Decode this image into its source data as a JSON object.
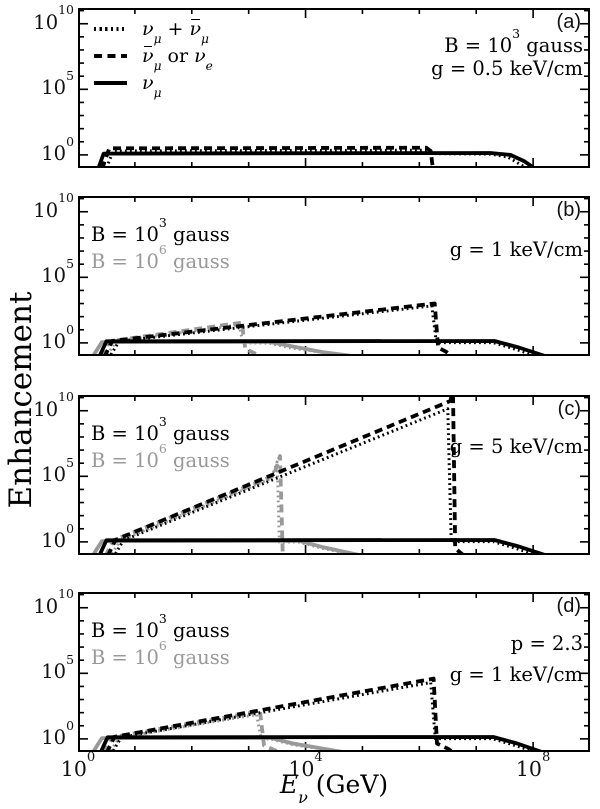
{
  "colors": {
    "black": "#000000",
    "gray": "#999999",
    "background": "#ffffff"
  },
  "labels": {
    "ylabel": [
      {
        "t": "Enhancement"
      }
    ],
    "xlabel": [
      {
        "t": "E",
        "i": true,
        "sub": "ν"
      },
      {
        "t": " (GeV)"
      }
    ]
  },
  "legend": {
    "items": [
      {
        "style": "dotted",
        "parts": [
          {
            "t": "ν",
            "i": true,
            "sub": "μ"
          },
          {
            "t": " + "
          },
          {
            "t": "ν",
            "i": true,
            "bar": true,
            "sub": "μ"
          }
        ]
      },
      {
        "style": "dashed",
        "parts": [
          {
            "t": "ν",
            "i": true,
            "bar": true,
            "sub": "μ"
          },
          {
            "t": " or "
          },
          {
            "t": "ν",
            "i": true,
            "sub": "e"
          }
        ]
      },
      {
        "style": "solid",
        "parts": [
          {
            "t": "ν",
            "i": true,
            "sub": "μ"
          }
        ]
      }
    ]
  },
  "axes": {
    "x_scale": "log",
    "y_scale": "log",
    "x_log_range": [
      0,
      9
    ],
    "y_log_range": [
      -1,
      11.2
    ],
    "x_major_decades": [
      0,
      4,
      8
    ],
    "y_major_decades": [
      0,
      5,
      10
    ],
    "x_tick_labels": [
      {
        "v": 0,
        "parts": [
          {
            "t": "10"
          },
          {
            "sup": "0"
          }
        ]
      },
      {
        "v": 4,
        "parts": [
          {
            "t": "10"
          },
          {
            "sup": "4"
          }
        ]
      },
      {
        "v": 8,
        "parts": [
          {
            "t": "10"
          },
          {
            "sup": "8"
          }
        ]
      }
    ],
    "y_tick_labels": [
      {
        "v": 10,
        "parts": [
          {
            "t": "10"
          },
          {
            "sup": "10"
          }
        ]
      },
      {
        "v": 5,
        "parts": [
          {
            "t": "10"
          },
          {
            "sup": "5"
          }
        ]
      },
      {
        "v": 0,
        "parts": [
          {
            "t": "10"
          },
          {
            "sup": "0"
          }
        ]
      }
    ]
  },
  "chart_data": [
    {
      "type": "line",
      "panel": "a",
      "corner_label": "(a)",
      "annotations_left": [],
      "annotations_right": [
        {
          "parts": [
            {
              "t": "B = 10"
            },
            {
              "sup": "3"
            },
            {
              "t": " gauss"
            }
          ]
        },
        {
          "parts": [
            {
              "t": "g = 0.5 keV/cm"
            }
          ]
        }
      ],
      "series": [
        {
          "id": "dotted-B1e3",
          "name": "nu_mu + nubar_mu (B = 10^3 gauss)",
          "style": "dotted",
          "color": "black",
          "points_log10": [
            [
              0.5,
              -1.0
            ],
            [
              0.62,
              0.3
            ],
            [
              3.0,
              0.33
            ],
            [
              6.18,
              0.36
            ],
            [
              6.28,
              0.1
            ],
            [
              7.25,
              0.06
            ],
            [
              7.55,
              -0.15
            ],
            [
              7.92,
              -1.1
            ]
          ]
        },
        {
          "id": "dashed-B1e3",
          "name": "nubar_mu or nu_e (B = 10^3 gauss)",
          "style": "dashed",
          "color": "black",
          "points_log10": [
            [
              0.42,
              -1.1
            ],
            [
              0.55,
              0.5
            ],
            [
              3.0,
              0.52
            ],
            [
              6.12,
              0.55
            ],
            [
              6.2,
              0.3
            ],
            [
              6.24,
              -1.1
            ]
          ]
        },
        {
          "id": "solid-B1e3",
          "name": "nu_mu (B = 10^3 gauss)",
          "style": "solid",
          "color": "black",
          "points_log10": [
            [
              0.36,
              -1.0
            ],
            [
              0.45,
              0.1
            ],
            [
              3.0,
              0.12
            ],
            [
              7.25,
              0.14
            ],
            [
              7.6,
              0.0
            ],
            [
              7.85,
              -0.5
            ],
            [
              8.05,
              -1.1
            ]
          ]
        }
      ]
    },
    {
      "type": "line",
      "panel": "b",
      "corner_label": "(b)",
      "annotations_left": [
        {
          "color": "#000000",
          "parts": [
            {
              "t": "B = 10"
            },
            {
              "sup": "3"
            },
            {
              "t": " gauss"
            }
          ]
        },
        {
          "color": "#999999",
          "parts": [
            {
              "t": "B = 10"
            },
            {
              "sup": "6"
            },
            {
              "t": " gauss"
            }
          ]
        }
      ],
      "annotations_right": [
        {
          "parts": [
            {
              "t": "g = 1 keV/cm"
            }
          ]
        }
      ],
      "series": [
        {
          "id": "dotted-B1e6",
          "name": "nu_mu + nubar_mu (B = 10^6 gauss)",
          "style": "dotted",
          "color": "gray",
          "points_log10": [
            [
              0.52,
              -0.9
            ],
            [
              0.66,
              0.1
            ],
            [
              2.83,
              1.38
            ],
            [
              2.9,
              0.0
            ],
            [
              3.35,
              -0.02
            ],
            [
              3.75,
              -0.4
            ],
            [
              4.92,
              -1.1
            ]
          ]
        },
        {
          "id": "dashed-B1e6",
          "name": "nubar_mu or nu_e (B = 10^6 gauss)",
          "style": "dashed",
          "color": "gray",
          "points_log10": [
            [
              0.4,
              -1.1
            ],
            [
              0.55,
              0.12
            ],
            [
              2.88,
              1.55
            ],
            [
              2.94,
              -0.45
            ],
            [
              3.25,
              -1.1
            ]
          ]
        },
        {
          "id": "solid-B1e6",
          "name": "nu_mu (B = 10^6 gauss)",
          "style": "solid",
          "color": "gray",
          "points_log10": [
            [
              0.28,
              -0.9
            ],
            [
              0.42,
              0.06
            ],
            [
              3.35,
              0.08
            ],
            [
              3.8,
              -0.3
            ],
            [
              4.3,
              -0.7
            ],
            [
              5.0,
              -1.1
            ]
          ]
        },
        {
          "id": "dotted-B1e3",
          "name": "nu_mu + nubar_mu (B = 10^3 gauss)",
          "style": "dotted",
          "color": "black",
          "points_log10": [
            [
              0.58,
              -0.9
            ],
            [
              0.72,
              0.12
            ],
            [
              6.22,
              2.82
            ],
            [
              6.3,
              0.02
            ],
            [
              7.3,
              0.02
            ],
            [
              7.7,
              -0.5
            ],
            [
              8.12,
              -1.1
            ]
          ]
        },
        {
          "id": "dashed-B1e3",
          "name": "nubar_mu or nu_e (B = 10^3 gauss)",
          "style": "dashed",
          "color": "black",
          "points_log10": [
            [
              0.46,
              -1.1
            ],
            [
              0.6,
              0.15
            ],
            [
              6.27,
              3.0
            ],
            [
              6.33,
              -0.35
            ],
            [
              6.48,
              -0.7
            ],
            [
              6.6,
              -1.1
            ]
          ]
        },
        {
          "id": "solid-B1e3",
          "name": "nu_mu (B = 10^3 gauss)",
          "style": "solid",
          "color": "black",
          "points_log10": [
            [
              0.38,
              -1.0
            ],
            [
              0.5,
              0.12
            ],
            [
              7.32,
              0.14
            ],
            [
              7.75,
              -0.35
            ],
            [
              8.28,
              -1.1
            ]
          ]
        }
      ]
    },
    {
      "type": "line",
      "panel": "c",
      "corner_label": "(c)",
      "annotations_left": [
        {
          "color": "#000000",
          "parts": [
            {
              "t": "B = 10"
            },
            {
              "sup": "3"
            },
            {
              "t": " gauss"
            }
          ]
        },
        {
          "color": "#999999",
          "parts": [
            {
              "t": "B = 10"
            },
            {
              "sup": "6"
            },
            {
              "t": " gauss"
            }
          ]
        }
      ],
      "annotations_right": [
        {
          "parts": [
            {
              "t": "g = 5 keV/cm"
            }
          ]
        }
      ],
      "series": [
        {
          "id": "dotted-B1e6",
          "name": "nu_mu + nubar_mu (B = 10^6 gauss)",
          "style": "dotted",
          "color": "gray",
          "points_log10": [
            [
              0.6,
              -0.9
            ],
            [
              0.74,
              0.1
            ],
            [
              3.4,
              4.85
            ],
            [
              3.5,
              6.1
            ],
            [
              3.54,
              0.0
            ],
            [
              3.88,
              -0.02
            ],
            [
              4.3,
              -0.5
            ],
            [
              5.0,
              -1.1
            ]
          ]
        },
        {
          "id": "dashed-B1e6",
          "name": "nubar_mu or nu_e (B = 10^6 gauss)",
          "style": "dashed",
          "color": "gray",
          "points_log10": [
            [
              0.48,
              -1.1
            ],
            [
              0.62,
              0.12
            ],
            [
              3.44,
              5.05
            ],
            [
              3.55,
              6.55
            ],
            [
              3.6,
              -1.1
            ]
          ]
        },
        {
          "id": "solid-B1e6",
          "name": "nu_mu (B = 10^6 gauss)",
          "style": "solid",
          "color": "gray",
          "points_log10": [
            [
              0.28,
              -0.9
            ],
            [
              0.42,
              0.06
            ],
            [
              3.88,
              0.08
            ],
            [
              4.3,
              -0.4
            ],
            [
              5.05,
              -1.1
            ]
          ]
        },
        {
          "id": "dotted-B1e3",
          "name": "nu_mu + nubar_mu (B = 10^3 gauss)",
          "style": "dotted",
          "color": "black",
          "points_log10": [
            [
              0.66,
              -0.9
            ],
            [
              0.8,
              0.12
            ],
            [
              6.5,
              10.15
            ],
            [
              6.56,
              0.02
            ],
            [
              7.3,
              0.02
            ],
            [
              7.7,
              -0.5
            ],
            [
              8.12,
              -1.1
            ]
          ]
        },
        {
          "id": "dashed-B1e3",
          "name": "nubar_mu or nu_e (B = 10^3 gauss)",
          "style": "dashed",
          "color": "black",
          "points_log10": [
            [
              0.52,
              -1.1
            ],
            [
              0.66,
              0.15
            ],
            [
              6.55,
              10.75
            ],
            [
              6.59,
              11.8
            ],
            [
              6.63,
              -0.5
            ],
            [
              6.8,
              -1.1
            ]
          ]
        },
        {
          "id": "solid-B1e3",
          "name": "nu_mu (B = 10^3 gauss)",
          "style": "solid",
          "color": "black",
          "points_log10": [
            [
              0.38,
              -1.0
            ],
            [
              0.5,
              0.12
            ],
            [
              7.32,
              0.14
            ],
            [
              7.75,
              -0.35
            ],
            [
              8.28,
              -1.1
            ]
          ]
        }
      ]
    },
    {
      "type": "line",
      "panel": "d",
      "corner_label": "(d)",
      "annotations_left": [
        {
          "color": "#000000",
          "parts": [
            {
              "t": "B = 10"
            },
            {
              "sup": "3"
            },
            {
              "t": " gauss"
            }
          ]
        },
        {
          "color": "#999999",
          "parts": [
            {
              "t": "B = 10"
            },
            {
              "sup": "6"
            },
            {
              "t": " gauss"
            }
          ]
        }
      ],
      "annotations_right": [
        {
          "parts": [
            {
              "t": "p = 2.3"
            }
          ]
        },
        {
          "parts": [
            {
              "t": "g = 1 keV/cm"
            }
          ]
        }
      ],
      "series": [
        {
          "id": "dotted-B1e6",
          "name": "nu_mu + nubar_mu (B = 10^6 gauss)",
          "style": "dotted",
          "color": "gray",
          "points_log10": [
            [
              0.58,
              -0.9
            ],
            [
              0.72,
              0.1
            ],
            [
              3.14,
              1.85
            ],
            [
              3.22,
              0.0
            ],
            [
              3.4,
              -0.02
            ],
            [
              3.78,
              -0.45
            ],
            [
              4.85,
              -1.1
            ]
          ]
        },
        {
          "id": "dashed-B1e6",
          "name": "nubar_mu or nu_e (B = 10^6 gauss)",
          "style": "dashed",
          "color": "gray",
          "points_log10": [
            [
              0.46,
              -1.1
            ],
            [
              0.6,
              0.12
            ],
            [
              3.2,
              2.1
            ],
            [
              3.27,
              -0.5
            ],
            [
              3.58,
              -1.1
            ]
          ]
        },
        {
          "id": "solid-B1e6",
          "name": "nu_mu (B = 10^6 gauss)",
          "style": "solid",
          "color": "gray",
          "points_log10": [
            [
              0.28,
              -0.9
            ],
            [
              0.42,
              0.06
            ],
            [
              3.38,
              0.08
            ],
            [
              3.78,
              -0.35
            ],
            [
              4.78,
              -1.1
            ]
          ]
        },
        {
          "id": "dotted-B1e3",
          "name": "nu_mu + nubar_mu (B = 10^3 gauss)",
          "style": "dotted",
          "color": "black",
          "points_log10": [
            [
              0.62,
              -0.9
            ],
            [
              0.76,
              0.12
            ],
            [
              6.2,
              4.3
            ],
            [
              6.28,
              0.02
            ],
            [
              7.28,
              0.02
            ],
            [
              7.68,
              -0.5
            ],
            [
              8.1,
              -1.1
            ]
          ]
        },
        {
          "id": "dashed-B1e3",
          "name": "nubar_mu or nu_e (B = 10^3 gauss)",
          "style": "dashed",
          "color": "black",
          "points_log10": [
            [
              0.5,
              -1.1
            ],
            [
              0.64,
              0.15
            ],
            [
              6.25,
              4.6
            ],
            [
              6.31,
              -0.35
            ],
            [
              6.5,
              -0.75
            ],
            [
              6.62,
              -1.1
            ]
          ]
        },
        {
          "id": "solid-B1e3",
          "name": "nu_mu (B = 10^3 gauss)",
          "style": "solid",
          "color": "black",
          "points_log10": [
            [
              0.4,
              -1.0
            ],
            [
              0.52,
              0.12
            ],
            [
              7.3,
              0.14
            ],
            [
              7.72,
              -0.35
            ],
            [
              8.22,
              -1.1
            ]
          ]
        }
      ]
    }
  ]
}
